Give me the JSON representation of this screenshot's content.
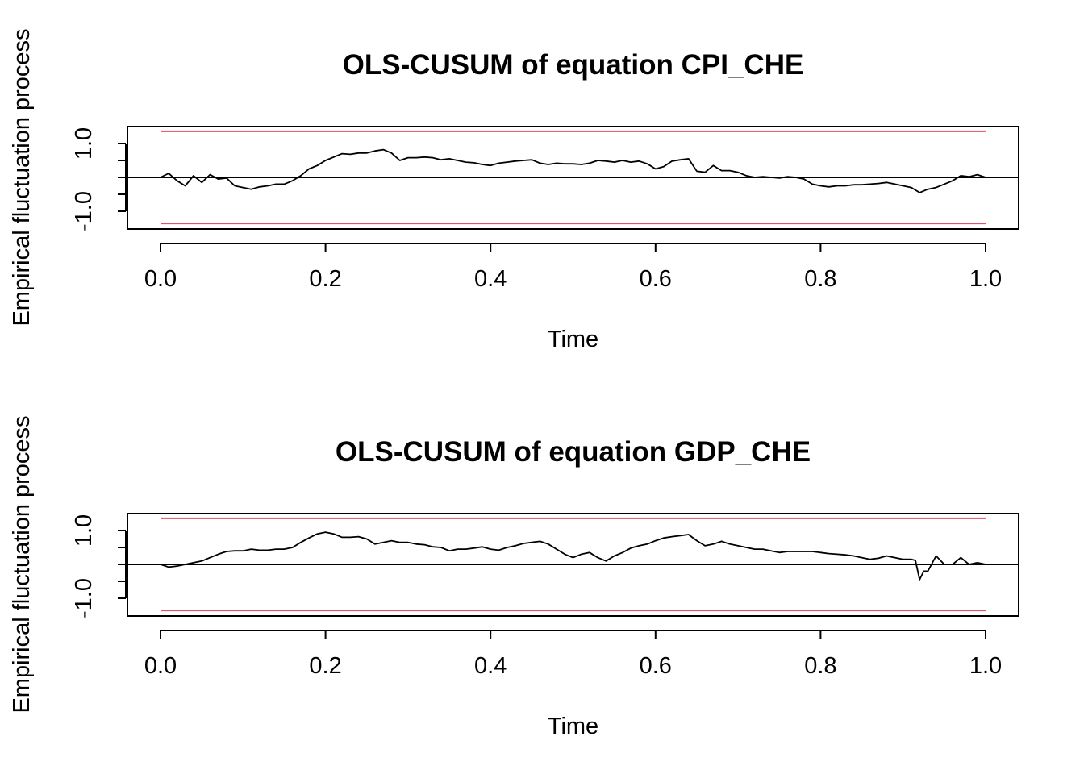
{
  "chart_data": [
    {
      "type": "line",
      "title": "OLS-CUSUM of equation CPI_CHE",
      "xlabel": "Time",
      "ylabel": "Empirical fluctuation process",
      "xlim": [
        0,
        1
      ],
      "ylim": [
        -1.5,
        1.5
      ],
      "x_ticks": [
        "0.0",
        "0.2",
        "0.4",
        "0.6",
        "0.8",
        "1.0"
      ],
      "y_ticks": [
        -1.0,
        -0.5,
        0.0,
        0.5,
        1.0
      ],
      "y_tick_labels": [
        "-1.0",
        "1.0"
      ],
      "boundary": 1.36,
      "boundary_color": "#DF536B",
      "series_color": "#000000",
      "series": [
        {
          "x": [
            0.0,
            0.01,
            0.02,
            0.03,
            0.04,
            0.05,
            0.06,
            0.07,
            0.08,
            0.09,
            0.1,
            0.11,
            0.12,
            0.13,
            0.14,
            0.15,
            0.16,
            0.17,
            0.18,
            0.19,
            0.2,
            0.21,
            0.22,
            0.23,
            0.24,
            0.25,
            0.26,
            0.27,
            0.28,
            0.29,
            0.3,
            0.31,
            0.32,
            0.33,
            0.34,
            0.35,
            0.36,
            0.37,
            0.38,
            0.39,
            0.4,
            0.41,
            0.42,
            0.43,
            0.44,
            0.45,
            0.46,
            0.47,
            0.48,
            0.49,
            0.5,
            0.51,
            0.52,
            0.53,
            0.54,
            0.55,
            0.56,
            0.57,
            0.58,
            0.59,
            0.6,
            0.61,
            0.62,
            0.63,
            0.64,
            0.65,
            0.66,
            0.67,
            0.68,
            0.69,
            0.7,
            0.71,
            0.72,
            0.73,
            0.74,
            0.75,
            0.76,
            0.77,
            0.78,
            0.79,
            0.8,
            0.81,
            0.82,
            0.83,
            0.84,
            0.85,
            0.86,
            0.87,
            0.88,
            0.89,
            0.9,
            0.91,
            0.92,
            0.93,
            0.94,
            0.95,
            0.96,
            0.97,
            0.98,
            0.99,
            1.0
          ],
          "values": [
            0.0,
            0.12,
            -0.1,
            -0.25,
            0.05,
            -0.15,
            0.08,
            -0.05,
            -0.02,
            -0.25,
            -0.3,
            -0.35,
            -0.28,
            -0.25,
            -0.2,
            -0.2,
            -0.1,
            0.05,
            0.25,
            0.35,
            0.5,
            0.6,
            0.7,
            0.68,
            0.72,
            0.72,
            0.78,
            0.82,
            0.72,
            0.5,
            0.58,
            0.58,
            0.6,
            0.58,
            0.52,
            0.55,
            0.5,
            0.45,
            0.43,
            0.38,
            0.35,
            0.42,
            0.45,
            0.48,
            0.5,
            0.52,
            0.42,
            0.38,
            0.42,
            0.4,
            0.4,
            0.38,
            0.42,
            0.5,
            0.48,
            0.45,
            0.5,
            0.45,
            0.48,
            0.4,
            0.25,
            0.32,
            0.48,
            0.52,
            0.55,
            0.18,
            0.15,
            0.35,
            0.2,
            0.2,
            0.15,
            0.05,
            0.0,
            0.02,
            0.0,
            -0.02,
            0.02,
            0.0,
            -0.05,
            -0.2,
            -0.25,
            -0.28,
            -0.25,
            -0.25,
            -0.22,
            -0.22,
            -0.2,
            -0.18,
            -0.15,
            -0.2,
            -0.25,
            -0.3,
            -0.45,
            -0.35,
            -0.3,
            -0.2,
            -0.1,
            0.05,
            0.02,
            0.08,
            0.0
          ]
        }
      ]
    },
    {
      "type": "line",
      "title": "OLS-CUSUM of equation GDP_CHE",
      "xlabel": "Time",
      "ylabel": "Empirical fluctuation process",
      "xlim": [
        0,
        1
      ],
      "ylim": [
        -1.5,
        1.5
      ],
      "x_ticks": [
        "0.0",
        "0.2",
        "0.4",
        "0.6",
        "0.8",
        "1.0"
      ],
      "y_ticks": [
        -1.0,
        -0.5,
        0.0,
        0.5,
        1.0
      ],
      "y_tick_labels": [
        "-1.0",
        "1.0"
      ],
      "boundary": 1.36,
      "boundary_color": "#DF536B",
      "series_color": "#000000",
      "series": [
        {
          "x": [
            0.0,
            0.01,
            0.02,
            0.03,
            0.04,
            0.05,
            0.06,
            0.07,
            0.08,
            0.09,
            0.1,
            0.11,
            0.12,
            0.13,
            0.14,
            0.15,
            0.16,
            0.17,
            0.18,
            0.19,
            0.2,
            0.21,
            0.22,
            0.23,
            0.24,
            0.25,
            0.26,
            0.27,
            0.28,
            0.29,
            0.3,
            0.31,
            0.32,
            0.33,
            0.34,
            0.35,
            0.36,
            0.37,
            0.38,
            0.39,
            0.4,
            0.41,
            0.42,
            0.43,
            0.44,
            0.45,
            0.46,
            0.47,
            0.48,
            0.49,
            0.5,
            0.51,
            0.52,
            0.53,
            0.54,
            0.55,
            0.56,
            0.57,
            0.58,
            0.59,
            0.6,
            0.61,
            0.62,
            0.63,
            0.64,
            0.65,
            0.66,
            0.67,
            0.68,
            0.69,
            0.7,
            0.71,
            0.72,
            0.73,
            0.74,
            0.75,
            0.76,
            0.77,
            0.78,
            0.79,
            0.8,
            0.81,
            0.82,
            0.83,
            0.84,
            0.85,
            0.86,
            0.87,
            0.88,
            0.89,
            0.9,
            0.91,
            0.915,
            0.92,
            0.925,
            0.93,
            0.94,
            0.95,
            0.96,
            0.97,
            0.98,
            0.99,
            1.0
          ],
          "values": [
            0.0,
            -0.08,
            -0.05,
            0.0,
            0.05,
            0.1,
            0.2,
            0.3,
            0.38,
            0.4,
            0.4,
            0.45,
            0.42,
            0.42,
            0.45,
            0.45,
            0.5,
            0.65,
            0.78,
            0.9,
            0.95,
            0.9,
            0.8,
            0.8,
            0.82,
            0.75,
            0.6,
            0.65,
            0.7,
            0.65,
            0.65,
            0.6,
            0.58,
            0.52,
            0.5,
            0.4,
            0.45,
            0.45,
            0.48,
            0.52,
            0.45,
            0.42,
            0.5,
            0.55,
            0.62,
            0.65,
            0.68,
            0.6,
            0.45,
            0.3,
            0.2,
            0.3,
            0.35,
            0.2,
            0.1,
            0.25,
            0.35,
            0.48,
            0.55,
            0.6,
            0.7,
            0.78,
            0.82,
            0.85,
            0.88,
            0.7,
            0.55,
            0.6,
            0.68,
            0.6,
            0.55,
            0.5,
            0.45,
            0.45,
            0.4,
            0.35,
            0.38,
            0.38,
            0.38,
            0.38,
            0.35,
            0.32,
            0.3,
            0.28,
            0.25,
            0.2,
            0.15,
            0.18,
            0.25,
            0.2,
            0.15,
            0.15,
            0.12,
            -0.45,
            -0.2,
            -0.2,
            0.25,
            0.0,
            0.0,
            0.2,
            0.0,
            0.05,
            0.0
          ]
        }
      ]
    }
  ]
}
